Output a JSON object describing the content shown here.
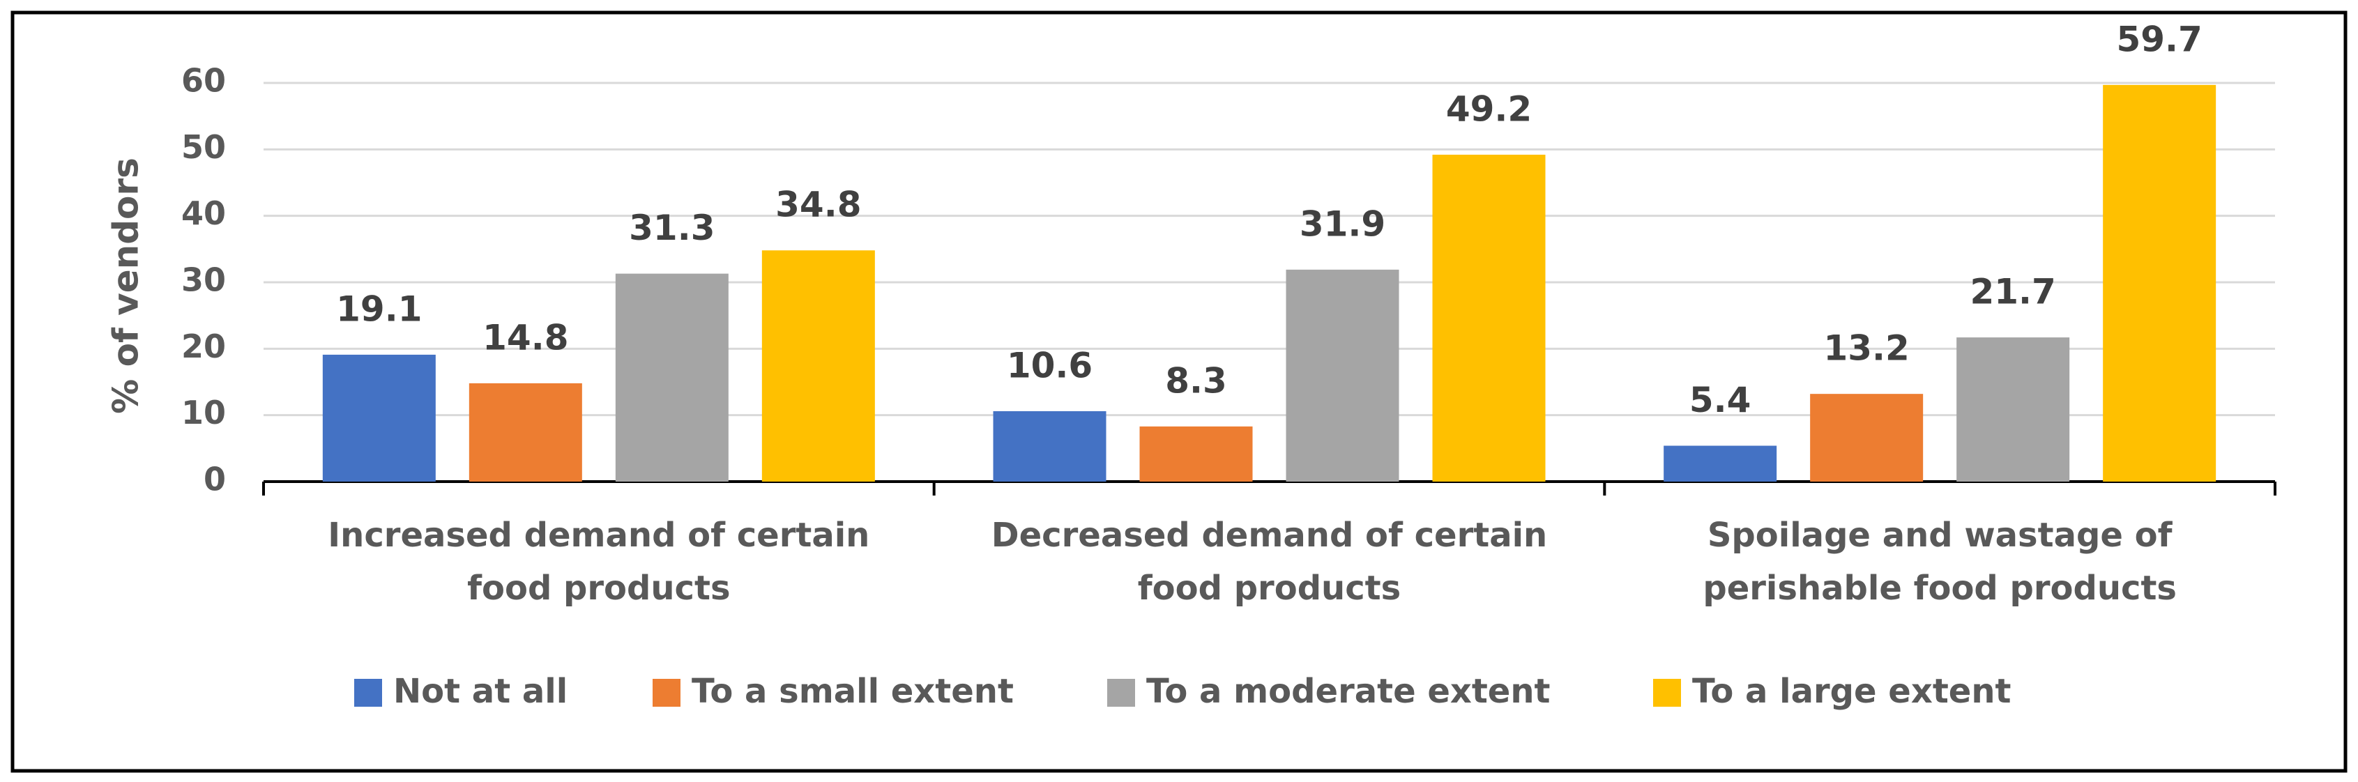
{
  "chart_data": {
    "type": "bar",
    "y_label": "% of vendors",
    "categories": [
      [
        "Increased demand of certain",
        "food products"
      ],
      [
        "Decreased demand of certain",
        "food products"
      ],
      [
        "Spoilage and wastage of",
        "perishable food products"
      ]
    ],
    "series": [
      {
        "name": "Not at all",
        "color": "#4472c4",
        "values": [
          19.1,
          10.6,
          5.4
        ]
      },
      {
        "name": "To a small extent",
        "color": "#ed7d31",
        "values": [
          14.8,
          8.3,
          13.2
        ]
      },
      {
        "name": "To a moderate extent",
        "color": "#a5a5a5",
        "values": [
          31.3,
          31.9,
          21.7
        ]
      },
      {
        "name": "To a large extent",
        "color": "#ffc000",
        "values": [
          34.8,
          49.2,
          59.7
        ]
      }
    ],
    "ylim": [
      0,
      60
    ],
    "yticks": [
      0,
      10,
      20,
      30,
      40,
      50,
      60
    ],
    "grid": true,
    "legend": "bottom"
  }
}
